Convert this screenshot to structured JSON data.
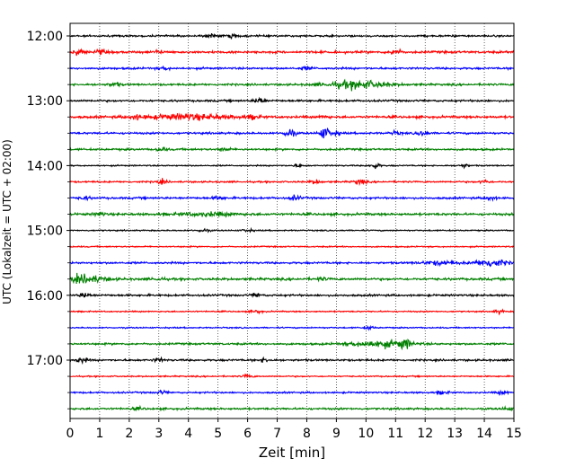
{
  "chart_data": {
    "type": "line",
    "title": "",
    "xlabel": "Zeit  [min]",
    "ylabel": "UTC (Lokalzeit = UTC + 02:00)",
    "x_ticks": [
      0,
      1,
      2,
      3,
      4,
      5,
      6,
      7,
      8,
      9,
      10,
      11,
      12,
      13,
      14,
      15
    ],
    "xlim": [
      0,
      15
    ],
    "y_ticks": [
      "12:00",
      "13:00",
      "14:00",
      "15:00",
      "16:00",
      "17:00"
    ],
    "grid": "vertical dotted",
    "traces_per_hour": 4,
    "trace_minutes_each": 15,
    "trace_colors": [
      "#000000",
      "#ff0000",
      "#0000ff",
      "#008000"
    ],
    "traces": [
      {
        "start": "12:00",
        "noise": 0.28,
        "events": [
          {
            "t": 4.8,
            "amp": 0.5
          },
          {
            "t": 5.5,
            "amp": 0.6
          }
        ]
      },
      {
        "start": "12:15",
        "noise": 0.35,
        "events": [
          {
            "t": 0.3,
            "amp": 0.9
          },
          {
            "t": 1.0,
            "amp": 0.6
          },
          {
            "t": 3.0,
            "amp": 0.5
          },
          {
            "t": 11.0,
            "amp": 1.0
          }
        ]
      },
      {
        "start": "12:30",
        "noise": 0.3,
        "events": [
          {
            "t": 3.2,
            "amp": 0.4
          },
          {
            "t": 8.0,
            "amp": 0.4
          }
        ]
      },
      {
        "start": "12:45",
        "noise": 0.3,
        "events": [
          {
            "t": 1.5,
            "amp": 0.6
          },
          {
            "t": 9.7,
            "amp": 1.2,
            "dur": 2.0
          }
        ]
      },
      {
        "start": "13:00",
        "noise": 0.3,
        "events": [
          {
            "t": 6.4,
            "amp": 1.0
          }
        ]
      },
      {
        "start": "13:15",
        "noise": 0.35,
        "events": [
          {
            "t": 2.2,
            "amp": 0.5
          },
          {
            "t": 4.0,
            "amp": 0.8,
            "dur": 3.0
          },
          {
            "t": 6.2,
            "amp": 0.6
          },
          {
            "t": 8.6,
            "amp": 0.4
          }
        ]
      },
      {
        "start": "13:30",
        "noise": 0.3,
        "events": [
          {
            "t": 7.4,
            "amp": 1.4
          },
          {
            "t": 8.6,
            "amp": 1.8
          },
          {
            "t": 9.0,
            "amp": 0.5
          },
          {
            "t": 11.0,
            "amp": 0.5
          },
          {
            "t": 11.9,
            "amp": 0.8
          }
        ]
      },
      {
        "start": "13:45",
        "noise": 0.3,
        "events": [
          {
            "t": 3.1,
            "amp": 0.6
          },
          {
            "t": 5.2,
            "amp": 0.5
          }
        ]
      },
      {
        "start": "14:00",
        "noise": 0.2,
        "events": [
          {
            "t": 7.7,
            "amp": 0.4
          },
          {
            "t": 10.3,
            "amp": 0.8
          },
          {
            "t": 13.3,
            "amp": 0.5
          }
        ]
      },
      {
        "start": "14:15",
        "noise": 0.25,
        "events": [
          {
            "t": 3.1,
            "amp": 0.6
          },
          {
            "t": 8.3,
            "amp": 0.6
          },
          {
            "t": 9.8,
            "amp": 0.8
          },
          {
            "t": 14.0,
            "amp": 0.5
          }
        ]
      },
      {
        "start": "14:30",
        "noise": 0.3,
        "events": [
          {
            "t": 0.5,
            "amp": 0.5
          },
          {
            "t": 5.0,
            "amp": 0.6
          },
          {
            "t": 7.6,
            "amp": 0.7
          },
          {
            "t": 14.2,
            "amp": 0.6
          }
        ]
      },
      {
        "start": "14:45",
        "noise": 0.35,
        "events": [
          {
            "t": 1.0,
            "amp": 0.5
          },
          {
            "t": 4.7,
            "amp": 0.5,
            "dur": 2.0
          }
        ]
      },
      {
        "start": "15:00",
        "noise": 0.2,
        "events": [
          {
            "t": 4.5,
            "amp": 0.5
          },
          {
            "t": 6.0,
            "amp": 0.4
          }
        ]
      },
      {
        "start": "15:15",
        "noise": 0.2,
        "events": []
      },
      {
        "start": "15:30",
        "noise": 0.3,
        "events": [
          {
            "t": 12.5,
            "amp": 0.6,
            "dur": 1.2
          },
          {
            "t": 14.2,
            "amp": 1.3,
            "dur": 1.0
          }
        ]
      },
      {
        "start": "15:45",
        "noise": 0.35,
        "events": [
          {
            "t": 0.5,
            "amp": 1.2,
            "dur": 1.3
          },
          {
            "t": 3.0,
            "amp": 0.4
          },
          {
            "t": 8.5,
            "amp": 0.4
          }
        ]
      },
      {
        "start": "16:00",
        "noise": 0.3,
        "events": [
          {
            "t": 0.5,
            "amp": 0.7
          },
          {
            "t": 6.3,
            "amp": 0.5
          }
        ]
      },
      {
        "start": "16:15",
        "noise": 0.2,
        "events": [
          {
            "t": 6.3,
            "amp": 0.5
          },
          {
            "t": 14.5,
            "amp": 0.5
          }
        ]
      },
      {
        "start": "16:30",
        "noise": 0.2,
        "events": [
          {
            "t": 10.1,
            "amp": 0.5
          }
        ]
      },
      {
        "start": "16:45",
        "noise": 0.3,
        "events": [
          {
            "t": 10.5,
            "amp": 1.0,
            "dur": 2.0
          },
          {
            "t": 11.3,
            "amp": 1.3
          }
        ]
      },
      {
        "start": "17:00",
        "noise": 0.3,
        "events": [
          {
            "t": 0.4,
            "amp": 0.8
          },
          {
            "t": 3.0,
            "amp": 0.5
          },
          {
            "t": 6.6,
            "amp": 0.6
          }
        ]
      },
      {
        "start": "17:15",
        "noise": 0.2,
        "events": [
          {
            "t": 6.0,
            "amp": 0.5
          }
        ]
      },
      {
        "start": "17:30",
        "noise": 0.25,
        "events": [
          {
            "t": 3.1,
            "amp": 0.5
          },
          {
            "t": 12.6,
            "amp": 0.5
          },
          {
            "t": 14.6,
            "amp": 0.5
          }
        ]
      },
      {
        "start": "17:45",
        "noise": 0.3,
        "events": [
          {
            "t": 2.3,
            "amp": 0.3
          },
          {
            "t": 14.8,
            "amp": 0.5
          }
        ]
      }
    ]
  }
}
